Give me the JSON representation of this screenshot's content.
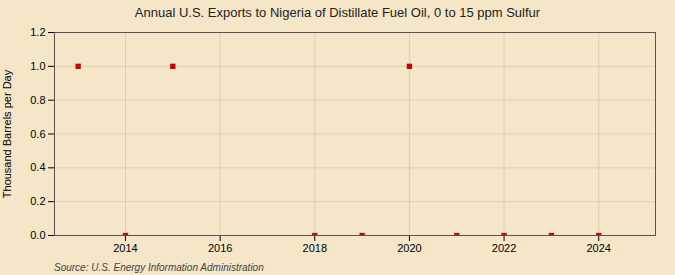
{
  "chart_data": {
    "type": "scatter",
    "title": "Annual U.S. Exports to Nigeria of Distillate Fuel Oil, 0 to 15 ppm Sulfur",
    "y_label": "Thousand Barrels per Day",
    "source": "Source: U.S. Energy Information Administration",
    "x": [
      2013,
      2014,
      2015,
      2018,
      2019,
      2020,
      2021,
      2022,
      2023,
      2024
    ],
    "values": [
      1.0,
      0.0,
      1.0,
      0.0,
      0.0,
      1.0,
      0.0,
      0.0,
      0.0,
      0.0
    ],
    "color": "#cc0000",
    "marker": "square",
    "xlim": [
      2012.5,
      2025.2
    ],
    "xticks": [
      2014,
      2016,
      2018,
      2020,
      2022,
      2024
    ],
    "ylim": [
      0.0,
      1.2
    ],
    "yticks": [
      {
        "value": 0.0,
        "label": "0.0"
      },
      0.2,
      0.4,
      0.6,
      0.8,
      {
        "value": 1.0,
        "label": "1.0"
      },
      1.2
    ],
    "grid": true
  }
}
